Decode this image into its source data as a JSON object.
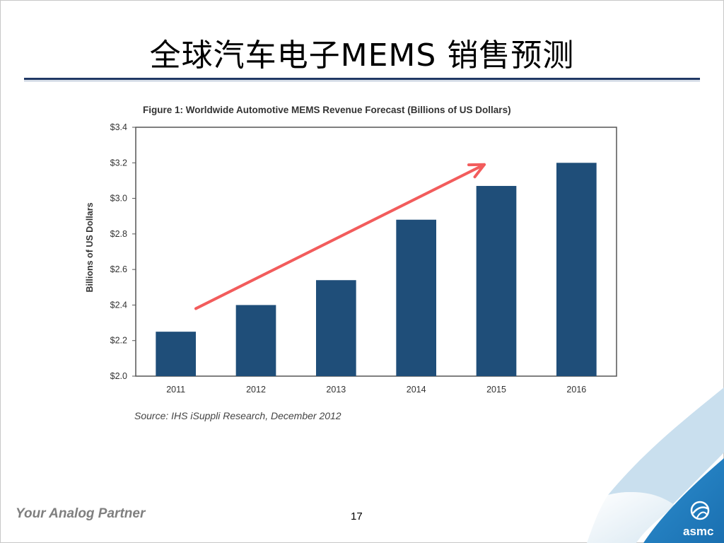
{
  "slide": {
    "title": "全球汽车电子MEMS 销售预测",
    "footer": "Your Analog Partner",
    "page_number": "17",
    "logo_text": "asmc"
  },
  "colors": {
    "bar": "#1f4e79",
    "arrow": "#f25c5c",
    "title_rule": "#1f3864"
  },
  "chart_data": {
    "type": "bar",
    "title": "Figure 1: Worldwide Automotive MEMS Revenue Forecast (Billions of US Dollars)",
    "ylabel": "Billions of US Dollars",
    "xlabel": "",
    "source": "Source: IHS iSuppli Research, December 2012",
    "categories": [
      "2011",
      "2012",
      "2013",
      "2014",
      "2015",
      "2016"
    ],
    "values": [
      2.25,
      2.4,
      2.54,
      2.88,
      3.07,
      3.2
    ],
    "ylim": [
      2.0,
      3.4
    ],
    "yticks": [
      {
        "value": 2.0,
        "label": "$2.0"
      },
      {
        "value": 2.2,
        "label": "$2.2"
      },
      {
        "value": 2.4,
        "label": "$2.4"
      },
      {
        "value": 2.6,
        "label": "$2.6"
      },
      {
        "value": 2.8,
        "label": "$2.8"
      },
      {
        "value": 3.0,
        "label": "$3.0"
      },
      {
        "value": 3.2,
        "label": "$3.2"
      },
      {
        "value": 3.4,
        "label": "$3.4"
      }
    ],
    "grid": false,
    "annotation": "upward trend arrow"
  }
}
